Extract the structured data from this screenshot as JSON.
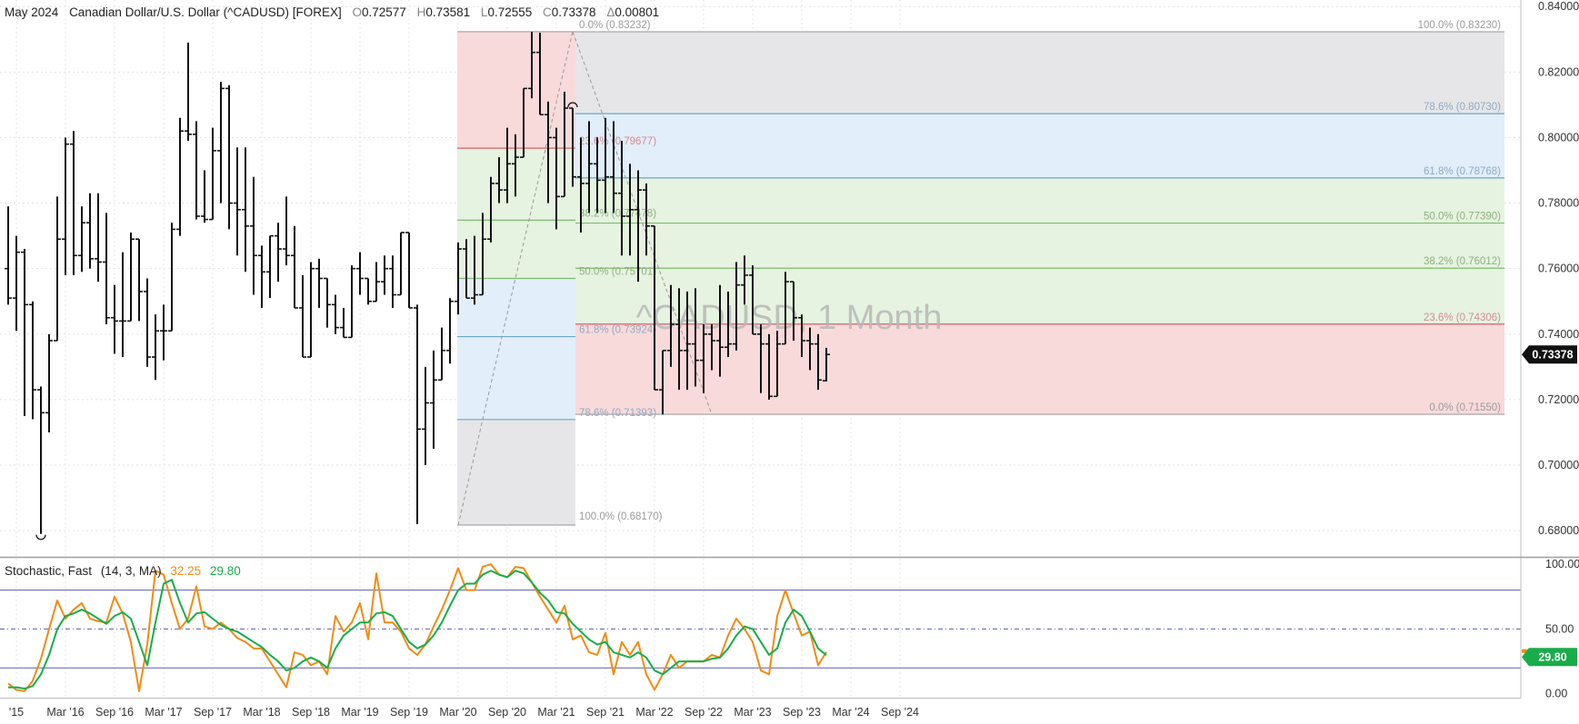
{
  "header": {
    "contract": "May 2024",
    "name": "Canadian Dollar/U.S. Dollar (^CADUSD) [FOREX]",
    "ohlc": [
      {
        "k": "O",
        "v": "0.72577"
      },
      {
        "k": "H",
        "v": "0.73581"
      },
      {
        "k": "L",
        "v": "0.72555"
      },
      {
        "k": "C",
        "v": "0.73378"
      },
      {
        "k": "Δ",
        "v": "0.00801"
      }
    ]
  },
  "watermark": "^CADUSD, 1 Month",
  "colors": {
    "red_zone": "#f9dadb",
    "green_zone": "#e5f3e0",
    "blue_zone": "#e2eefa",
    "gray_zone": "#e6e6e8",
    "fast_line": "#f08c13",
    "slow_line": "#19ac4a",
    "price_badge": "#111111",
    "stoch_badge_green": "#19ac4a",
    "stoch_badge_orange": "#f08c13",
    "ref_lines": "#5a5fb0"
  },
  "chart_data": [
    {
      "type": "ohlc",
      "title": "Canadian Dollar/U.S. Dollar (^CADUSD) [FOREX]",
      "interval": "1 Month",
      "ylim": [
        0.672,
        0.842
      ],
      "y_ticks": [
        "0.84000",
        "0.82000",
        "0.80000",
        "0.78000",
        "0.76000",
        "0.74000",
        "0.72000",
        "0.70000",
        "0.68000"
      ],
      "x_ticks": [
        "'15",
        "Mar '16",
        "Sep '16",
        "Mar '17",
        "Sep '17",
        "Mar '18",
        "Sep '18",
        "Mar '19",
        "Sep '19",
        "Mar '20",
        "Sep '20",
        "Mar '21",
        "Sep '21",
        "Mar '22",
        "Sep '22",
        "Mar '23",
        "Sep '23",
        "Mar '24",
        "Sep '24"
      ],
      "x_tick_dates": [
        "2015-09",
        "2016-03",
        "2016-09",
        "2017-03",
        "2017-09",
        "2018-03",
        "2018-09",
        "2019-03",
        "2019-09",
        "2020-03",
        "2020-09",
        "2021-03",
        "2021-09",
        "2022-03",
        "2022-09",
        "2023-03",
        "2023-09",
        "2024-03",
        "2024-09"
      ],
      "first_bar": "2015-08",
      "last_price": "0.73378",
      "bars": [
        [
          0.76,
          0.779,
          0.749,
          0.751
        ],
        [
          0.751,
          0.77,
          0.741,
          0.765
        ],
        [
          0.765,
          0.766,
          0.715,
          0.749
        ],
        [
          0.749,
          0.75,
          0.714,
          0.723
        ],
        [
          0.723,
          0.724,
          0.679,
          0.716
        ],
        [
          0.716,
          0.74,
          0.71,
          0.738
        ],
        [
          0.738,
          0.782,
          0.738,
          0.769
        ],
        [
          0.769,
          0.8,
          0.758,
          0.798
        ],
        [
          0.798,
          0.802,
          0.758,
          0.764
        ],
        [
          0.764,
          0.779,
          0.759,
          0.774
        ],
        [
          0.774,
          0.783,
          0.76,
          0.763
        ],
        [
          0.763,
          0.783,
          0.756,
          0.762
        ],
        [
          0.762,
          0.777,
          0.743,
          0.745
        ],
        [
          0.745,
          0.755,
          0.734,
          0.744
        ],
        [
          0.744,
          0.765,
          0.733,
          0.744
        ],
        [
          0.744,
          0.771,
          0.745,
          0.769
        ],
        [
          0.769,
          0.763,
          0.744,
          0.753
        ],
        [
          0.753,
          0.757,
          0.73,
          0.733
        ],
        [
          0.733,
          0.746,
          0.726,
          0.741
        ],
        [
          0.741,
          0.749,
          0.732,
          0.741
        ],
        [
          0.741,
          0.774,
          0.741,
          0.772
        ],
        [
          0.772,
          0.806,
          0.77,
          0.802
        ],
        [
          0.802,
          0.829,
          0.799,
          0.801
        ],
        [
          0.801,
          0.805,
          0.775,
          0.776
        ],
        [
          0.776,
          0.79,
          0.774,
          0.775
        ],
        [
          0.775,
          0.803,
          0.776,
          0.796
        ],
        [
          0.796,
          0.817,
          0.78,
          0.815
        ],
        [
          0.815,
          0.816,
          0.772,
          0.78
        ],
        [
          0.78,
          0.797,
          0.764,
          0.778
        ],
        [
          0.778,
          0.797,
          0.759,
          0.773
        ],
        [
          0.773,
          0.788,
          0.752,
          0.764
        ],
        [
          0.764,
          0.767,
          0.748,
          0.759
        ],
        [
          0.759,
          0.77,
          0.751,
          0.77
        ],
        [
          0.77,
          0.774,
          0.756,
          0.766
        ],
        [
          0.766,
          0.782,
          0.761,
          0.764
        ],
        [
          0.764,
          0.773,
          0.755,
          0.748
        ],
        [
          0.748,
          0.758,
          0.733,
          0.733
        ],
        [
          0.733,
          0.762,
          0.733,
          0.76
        ],
        [
          0.76,
          0.763,
          0.748,
          0.757
        ],
        [
          0.757,
          0.757,
          0.742,
          0.749
        ],
        [
          0.749,
          0.752,
          0.74,
          0.742
        ],
        [
          0.742,
          0.748,
          0.74,
          0.739
        ],
        [
          0.739,
          0.761,
          0.739,
          0.76
        ],
        [
          0.76,
          0.765,
          0.752,
          0.757
        ],
        [
          0.757,
          0.757,
          0.749,
          0.75
        ],
        [
          0.75,
          0.762,
          0.75,
          0.756
        ],
        [
          0.756,
          0.764,
          0.752,
          0.76
        ],
        [
          0.76,
          0.764,
          0.748,
          0.752
        ],
        [
          0.752,
          0.771,
          0.754,
          0.771
        ],
        [
          0.771,
          0.77,
          0.748,
          0.748
        ],
        [
          0.748,
          0.749,
          0.682,
          0.711
        ],
        [
          0.711,
          0.73,
          0.7,
          0.719
        ],
        [
          0.719,
          0.735,
          0.705,
          0.726
        ],
        [
          0.726,
          0.742,
          0.726,
          0.735
        ],
        [
          0.735,
          0.751,
          0.731,
          0.75
        ],
        [
          0.75,
          0.768,
          0.746,
          0.766
        ],
        [
          0.766,
          0.769,
          0.751,
          0.751
        ],
        [
          0.751,
          0.77,
          0.749,
          0.752
        ],
        [
          0.752,
          0.777,
          0.752,
          0.769
        ],
        [
          0.769,
          0.788,
          0.768,
          0.786
        ],
        [
          0.786,
          0.794,
          0.78,
          0.784
        ],
        [
          0.784,
          0.803,
          0.78,
          0.792
        ],
        [
          0.792,
          0.801,
          0.782,
          0.794
        ],
        [
          0.794,
          0.808,
          0.797,
          0.815
        ],
        [
          0.815,
          0.8323,
          0.812,
          0.826
        ],
        [
          0.826,
          0.832,
          0.807,
          0.807
        ],
        [
          0.807,
          0.811,
          0.78,
          0.8
        ],
        [
          0.8,
          0.803,
          0.772,
          0.782
        ],
        [
          0.782,
          0.814,
          0.782,
          0.809
        ],
        [
          0.809,
          0.809,
          0.785,
          0.788
        ],
        [
          0.788,
          0.8,
          0.771,
          0.786
        ],
        [
          0.786,
          0.805,
          0.777,
          0.792
        ],
        [
          0.792,
          0.8,
          0.777,
          0.787
        ],
        [
          0.787,
          0.806,
          0.777,
          0.788
        ],
        [
          0.788,
          0.805,
          0.777,
          0.783
        ],
        [
          0.783,
          0.799,
          0.764,
          0.776
        ],
        [
          0.776,
          0.792,
          0.764,
          0.778
        ],
        [
          0.778,
          0.79,
          0.756,
          0.784
        ],
        [
          0.784,
          0.786,
          0.764,
          0.773
        ],
        [
          0.773,
          0.772,
          0.723,
          0.723
        ],
        [
          0.723,
          0.722,
          0.7155,
          0.735
        ],
        [
          0.735,
          0.755,
          0.73,
          0.743
        ],
        [
          0.743,
          0.754,
          0.723,
          0.735
        ],
        [
          0.735,
          0.753,
          0.723,
          0.737
        ],
        [
          0.737,
          0.754,
          0.724,
          0.732
        ],
        [
          0.732,
          0.743,
          0.722,
          0.74
        ],
        [
          0.74,
          0.743,
          0.729,
          0.738
        ],
        [
          0.738,
          0.755,
          0.727,
          0.736
        ],
        [
          0.736,
          0.753,
          0.733,
          0.737
        ],
        [
          0.737,
          0.762,
          0.735,
          0.755
        ],
        [
          0.755,
          0.764,
          0.749,
          0.758
        ],
        [
          0.758,
          0.761,
          0.745,
          0.74
        ],
        [
          0.74,
          0.743,
          0.722,
          0.737
        ],
        [
          0.737,
          0.74,
          0.72,
          0.721
        ],
        [
          0.721,
          0.741,
          0.721,
          0.737
        ],
        [
          0.737,
          0.759,
          0.738,
          0.756
        ],
        [
          0.756,
          0.755,
          0.738,
          0.745
        ],
        [
          0.745,
          0.746,
          0.733,
          0.738
        ],
        [
          0.738,
          0.742,
          0.729,
          0.737
        ],
        [
          0.737,
          0.74,
          0.723,
          0.726
        ],
        [
          0.72577,
          0.73581,
          0.72555,
          0.73378
        ]
      ],
      "fib_retracement_2021": {
        "from_low": 0.6817,
        "to_high": 0.83232,
        "levels": [
          {
            "label": "0.0% (0.83232)",
            "price": 0.83232
          },
          {
            "label": "23.6% (0.79677)",
            "price": 0.79677
          },
          {
            "label": "38.2% (0.77478)",
            "price": 0.77478
          },
          {
            "label": "50.0% (0.75701)",
            "price": 0.75701
          },
          {
            "label": "61.8% (0.73924)",
            "price": 0.73924
          },
          {
            "label": "78.6% (0.71393)",
            "price": 0.71393
          },
          {
            "label": "100.0% (0.68170)",
            "price": 0.6817
          }
        ]
      },
      "fib_retracement_2022": {
        "from_high": 0.8323,
        "to_low": 0.7155,
        "levels": [
          {
            "label": "100.0% (0.83230)",
            "price": 0.8323
          },
          {
            "label": "78.6% (0.80730)",
            "price": 0.8073
          },
          {
            "label": "61.8% (0.78768)",
            "price": 0.78768
          },
          {
            "label": "50.0% (0.77390)",
            "price": 0.7739
          },
          {
            "label": "38.2% (0.76012)",
            "price": 0.76012
          },
          {
            "label": "23.6% (0.74306)",
            "price": 0.74306
          },
          {
            "label": "0.0% (0.71550)",
            "price": 0.7155
          }
        ]
      }
    },
    {
      "type": "line",
      "title": "Stochastic, Fast",
      "params": "(14, 3, MA)",
      "ylim": [
        -3,
        105
      ],
      "y_ticks": [
        "100.00",
        "50.00",
        "0.00"
      ],
      "ref_levels": [
        80,
        50,
        20
      ],
      "series": [
        {
          "name": "32.25",
          "color": "#f08c13",
          "values": [
            8,
            3,
            2,
            10,
            27,
            50,
            72,
            58,
            65,
            70,
            58,
            56,
            55,
            75,
            62,
            40,
            2,
            38,
            95,
            92,
            70,
            50,
            58,
            83,
            52,
            50,
            55,
            50,
            43,
            40,
            35,
            35,
            25,
            15,
            5,
            32,
            30,
            22,
            25,
            15,
            60,
            48,
            55,
            70,
            42,
            93,
            55,
            55,
            48,
            35,
            30,
            38,
            52,
            65,
            80,
            97,
            80,
            80,
            98,
            100,
            92,
            90,
            98,
            97,
            86,
            75,
            65,
            55,
            68,
            42,
            45,
            32,
            30,
            47,
            15,
            40,
            30,
            40,
            15,
            3,
            15,
            30,
            20,
            25,
            25,
            25,
            30,
            28,
            45,
            58,
            50,
            40,
            18,
            15,
            60,
            80,
            62,
            45,
            48,
            22,
            32.25
          ]
        },
        {
          "name": "29.80",
          "color": "#19ac4a",
          "values": [
            5,
            5,
            4,
            6,
            15,
            30,
            50,
            60,
            62,
            65,
            62,
            58,
            54,
            60,
            63,
            58,
            40,
            22,
            55,
            85,
            88,
            70,
            55,
            62,
            63,
            58,
            53,
            50,
            48,
            44,
            40,
            36,
            30,
            25,
            18,
            20,
            25,
            28,
            25,
            20,
            35,
            45,
            50,
            55,
            55,
            62,
            63,
            60,
            50,
            40,
            35,
            38,
            45,
            55,
            68,
            80,
            85,
            85,
            92,
            95,
            92,
            90,
            95,
            93,
            86,
            78,
            72,
            63,
            62,
            54,
            48,
            42,
            38,
            40,
            32,
            30,
            28,
            32,
            28,
            18,
            15,
            20,
            25,
            25,
            25,
            25,
            27,
            28,
            35,
            45,
            52,
            50,
            40,
            30,
            35,
            55,
            65,
            60,
            48,
            35,
            29.8
          ]
        }
      ]
    }
  ]
}
